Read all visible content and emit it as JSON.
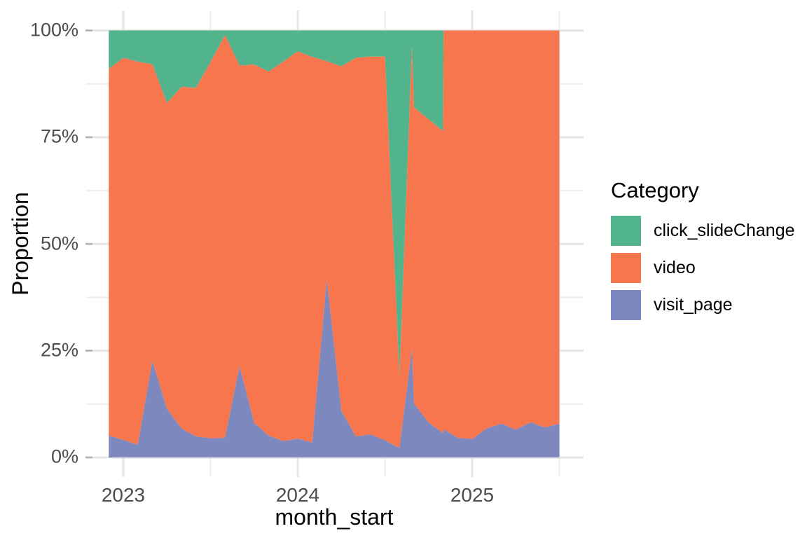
{
  "axes": {
    "x_title": "month_start",
    "y_title": "Proportion",
    "x_ticks": [
      "2023",
      "2024",
      "2025"
    ],
    "y_ticks": [
      "0%",
      "25%",
      "50%",
      "75%",
      "100%"
    ]
  },
  "legend": {
    "title": "Category",
    "items": [
      {
        "label": "click_slideChange",
        "color": "#52B48D"
      },
      {
        "label": "video",
        "color": "#F7764D"
      },
      {
        "label": "visit_page",
        "color": "#7D88BE"
      }
    ]
  },
  "chart_data": {
    "type": "area",
    "variant": "100%-stacked-area",
    "title": "",
    "xlabel": "month_start",
    "ylabel": "Proportion",
    "x_range": [
      "2022-12",
      "2025-07"
    ],
    "ylim": [
      0,
      100
    ],
    "y_tick_labels": [
      "0%",
      "25%",
      "50%",
      "75%",
      "100%"
    ],
    "x_tick_labels": [
      "2023",
      "2024",
      "2025"
    ],
    "grid": "major and minor, light gray, on white panel",
    "legend_position": "right",
    "series_order_bottom_to_top": [
      "visit_page",
      "video",
      "click_slideChange"
    ],
    "series": [
      {
        "name": "click_slideChange",
        "color": "#52B48D"
      },
      {
        "name": "video",
        "color": "#F7764D"
      },
      {
        "name": "visit_page",
        "color": "#7D88BE"
      }
    ],
    "points": [
      {
        "date": "2022-12",
        "visit_page": 5.1,
        "video": 85.9,
        "click_slideChange": 9.0
      },
      {
        "date": "2023-01",
        "visit_page": 4.1,
        "video": 89.5,
        "click_slideChange": 6.4
      },
      {
        "date": "2023-02",
        "visit_page": 3.0,
        "video": 89.7,
        "click_slideChange": 7.3
      },
      {
        "date": "2023-03",
        "visit_page": 22.6,
        "video": 69.5,
        "click_slideChange": 7.9
      },
      {
        "date": "2023-04",
        "visit_page": 11.4,
        "video": 71.6,
        "click_slideChange": 17.0
      },
      {
        "date": "2023-05",
        "visit_page": 6.8,
        "video": 80.0,
        "click_slideChange": 13.2
      },
      {
        "date": "2023-06",
        "visit_page": 4.9,
        "video": 81.7,
        "click_slideChange": 13.4
      },
      {
        "date": "2023-07",
        "visit_page": 4.5,
        "video": 88.1,
        "click_slideChange": 7.4
      },
      {
        "date": "2023-08",
        "visit_page": 4.6,
        "video": 94.3,
        "click_slideChange": 1.1
      },
      {
        "date": "2023-09",
        "visit_page": 21.4,
        "video": 70.4,
        "click_slideChange": 8.2
      },
      {
        "date": "2023-10",
        "visit_page": 8.1,
        "video": 83.9,
        "click_slideChange": 8.0
      },
      {
        "date": "2023-11",
        "visit_page": 5.1,
        "video": 85.3,
        "click_slideChange": 9.6
      },
      {
        "date": "2023-12",
        "visit_page": 3.8,
        "video": 88.9,
        "click_slideChange": 7.3
      },
      {
        "date": "2024-01",
        "visit_page": 4.4,
        "video": 90.7,
        "click_slideChange": 4.9
      },
      {
        "date": "2024-02",
        "visit_page": 3.5,
        "video": 90.3,
        "click_slideChange": 6.2
      },
      {
        "date": "2024-03",
        "visit_page": 41.6,
        "video": 51.2,
        "click_slideChange": 7.2
      },
      {
        "date": "2024-04",
        "visit_page": 10.9,
        "video": 80.7,
        "click_slideChange": 8.4
      },
      {
        "date": "2024-05",
        "visit_page": 4.9,
        "video": 88.7,
        "click_slideChange": 6.4
      },
      {
        "date": "2024-06",
        "visit_page": 5.4,
        "video": 88.5,
        "click_slideChange": 6.1
      },
      {
        "date": "2024-07",
        "visit_page": 4.0,
        "video": 89.9,
        "click_slideChange": 6.1
      },
      {
        "date": "2024-08",
        "visit_page": 2.2,
        "video": 16.6,
        "click_slideChange": 81.2
      },
      {
        "date": "2024-08-27",
        "visit_page": 25.4,
        "video": 70.8,
        "click_slideChange": 3.8
      },
      {
        "date": "2024-09",
        "visit_page": 12.6,
        "video": 69.4,
        "click_slideChange": 18.0
      },
      {
        "date": "2024-10",
        "visit_page": 8.2,
        "video": 71.0,
        "click_slideChange": 20.8
      },
      {
        "date": "2024-11",
        "visit_page": 5.7,
        "video": 70.7,
        "click_slideChange": 23.6
      },
      {
        "date": "2024-11-02",
        "visit_page": 6.6,
        "video": 93.4,
        "click_slideChange": 0.0
      },
      {
        "date": "2024-12",
        "visit_page": 4.6,
        "video": 95.4,
        "click_slideChange": 0.0
      },
      {
        "date": "2025-01",
        "visit_page": 4.3,
        "video": 95.7,
        "click_slideChange": 0.0
      },
      {
        "date": "2025-02",
        "visit_page": 6.8,
        "video": 93.2,
        "click_slideChange": 0.0
      },
      {
        "date": "2025-03",
        "visit_page": 7.9,
        "video": 92.1,
        "click_slideChange": 0.0
      },
      {
        "date": "2025-04",
        "visit_page": 6.5,
        "video": 93.5,
        "click_slideChange": 0.0
      },
      {
        "date": "2025-05",
        "visit_page": 8.2,
        "video": 91.8,
        "click_slideChange": 0.0
      },
      {
        "date": "2025-06",
        "visit_page": 7.0,
        "video": 93.0,
        "click_slideChange": 0.0
      },
      {
        "date": "2025-07",
        "visit_page": 7.9,
        "video": 92.1,
        "click_slideChange": 0.0
      }
    ]
  }
}
